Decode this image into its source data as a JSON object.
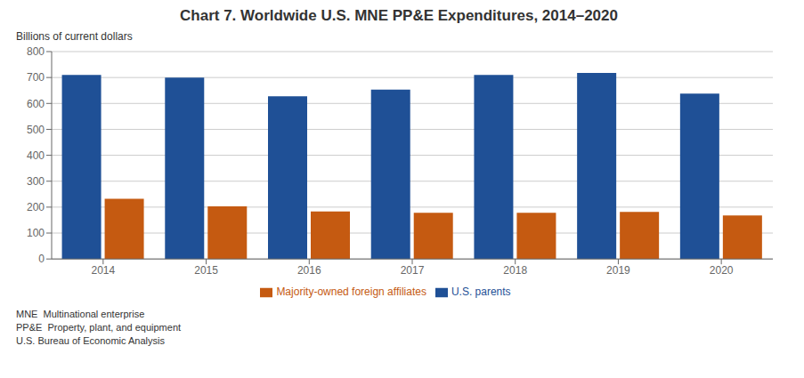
{
  "chart_data": {
    "type": "bar",
    "title": "Chart 7. Worldwide U.S. MNE PP&E Expenditures, 2014–2020",
    "y_label": "Billions of current dollars",
    "categories": [
      "2014",
      "2015",
      "2016",
      "2017",
      "2018",
      "2019",
      "2020"
    ],
    "series": [
      {
        "name": "U.S. parents",
        "color": "#1f5096",
        "values": [
          710,
          700,
          628,
          653,
          710,
          718,
          638
        ]
      },
      {
        "name": "Majority-owned foreign affiliates",
        "color": "#c55a11",
        "values": [
          232,
          203,
          183,
          178,
          178,
          182,
          168
        ]
      }
    ],
    "ylim": [
      0,
      800
    ],
    "yticks": [
      0,
      100,
      200,
      300,
      400,
      500,
      600,
      700,
      800
    ],
    "grid": true,
    "legend": "bottom",
    "annotations": [
      "MNE  Multinational enterprise",
      "PP&E  Property, plant, and equipment",
      "U.S. Bureau of Economic Analysis"
    ]
  }
}
